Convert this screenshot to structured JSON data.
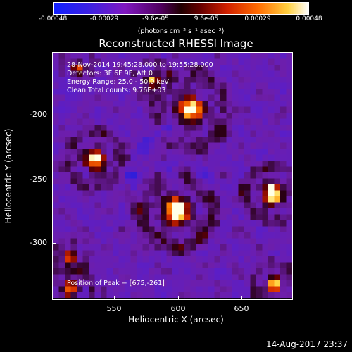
{
  "colorbar": {
    "ticks": [
      "-0.00048",
      "-0.00029",
      "-9.6e-05",
      "9.6e-05",
      "0.00029",
      "0.00048"
    ],
    "unit": "(photons cm⁻² s⁻¹ asec⁻²)",
    "colors": {
      "low": "#1010ff",
      "mid_low": "#8010c0",
      "mid": "#200000",
      "mid_high": "#ff5000",
      "high": "#ffffff"
    }
  },
  "plot": {
    "title": "Reconstructed RHESSI Image",
    "info": [
      "28-Nov-2014 19:45:28.000 to 19:55:28.000",
      "Detectors: 3F 6F 9F, Att 0",
      "Energy Range: 25.0 - 50.0 keV",
      "Clean     Total counts: 9.76E+03"
    ],
    "peak": "Position of Peak = [675,-261]",
    "x_label": "Heliocentric X (arcsec)",
    "y_label": "Heliocentric Y (arcsec)",
    "x_ticks": [
      "550",
      "600",
      "650"
    ],
    "y_ticks": [
      "-200",
      "-250",
      "-300"
    ]
  },
  "timestamp": "14-Aug-2017 23:37"
}
